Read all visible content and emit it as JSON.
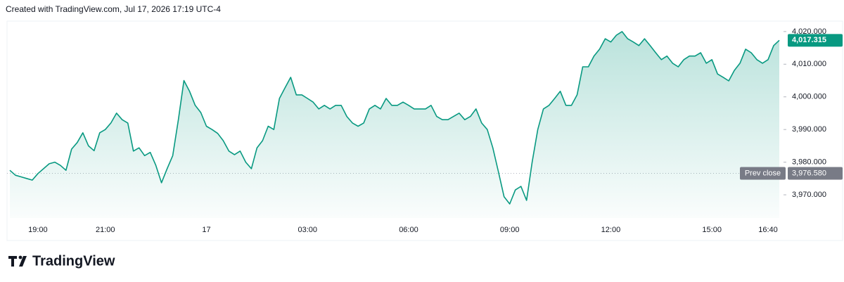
{
  "credit": "Created with TradingView.com, Jul 17, 2026 17:19 UTC-4",
  "brand": "TradingView",
  "chart_data": {
    "type": "area",
    "color": "#089981",
    "categories": [
      null,
      null,
      null,
      null,
      null,
      "19:00",
      null,
      null,
      null,
      null,
      null,
      null,
      null,
      null,
      null,
      null,
      null,
      "21:00",
      null,
      null,
      null,
      null,
      null,
      null,
      null,
      null,
      null,
      null,
      null,
      null,
      null,
      null,
      null,
      null,
      null,
      "17",
      null,
      null,
      null,
      null,
      null,
      null,
      null,
      null,
      null,
      null,
      null,
      null,
      null,
      null,
      null,
      null,
      null,
      "03:00",
      null,
      null,
      null,
      null,
      null,
      null,
      null,
      null,
      null,
      null,
      null,
      null,
      null,
      null,
      null,
      null,
      null,
      "06:00",
      null,
      null,
      null,
      null,
      null,
      null,
      null,
      null,
      null,
      null,
      null,
      null,
      null,
      null,
      null,
      null,
      null,
      "09:00",
      null,
      null,
      null,
      null,
      null,
      null,
      null,
      null,
      null,
      null,
      null,
      null,
      null,
      null,
      null,
      null,
      null,
      "12:00",
      null,
      null,
      null,
      null,
      null,
      null,
      null,
      null,
      null,
      null,
      null,
      null,
      null,
      null,
      null,
      null,
      null,
      "15:00",
      null,
      null,
      null,
      null,
      null,
      null,
      null,
      null,
      null,
      "16:40",
      null,
      null
    ],
    "values": [
      3977.5,
      3976,
      3975.5,
      3975,
      3974.5,
      3976.5,
      3978,
      3979.5,
      3980,
      3979,
      3977.5,
      3984,
      3986,
      3989,
      3985,
      3983.5,
      3989,
      3990,
      3992,
      3995,
      3993,
      3992,
      3983.4,
      3984.4,
      3982,
      3983,
      3979,
      3973.7,
      3978,
      3982,
      3993,
      4005,
      4001.7,
      3997.4,
      3995.2,
      3991,
      3990,
      3988.8,
      3986.6,
      3983.4,
      3982.3,
      3983.4,
      3980,
      3978,
      3984.4,
      3986.6,
      3991,
      3990,
      3999.5,
      4002.8,
      4006,
      4000.6,
      4000.6,
      3999.5,
      3998.4,
      3996.3,
      3997.4,
      3996.3,
      3997.4,
      3997.4,
      3994,
      3992,
      3991,
      3992,
      3996.3,
      3997.4,
      3996.3,
      3999.5,
      3997.4,
      3997.4,
      3998.4,
      3997.4,
      3996.3,
      3996.3,
      3996.3,
      3997.4,
      3994,
      3993,
      3993,
      3994,
      3995,
      3993,
      3994,
      3996.3,
      3992,
      3990,
      3984.4,
      3977,
      3969.4,
      3967.2,
      3971.5,
      3972.6,
      3968.3,
      3980,
      3990,
      3996.3,
      3997.4,
      3999.5,
      4001.7,
      3997.4,
      3997.4,
      4000.6,
      4009.2,
      4009.2,
      4012.5,
      4014.6,
      4017.8,
      4016.8,
      4018.9,
      4020,
      4017.8,
      4016.8,
      4015.7,
      4017.8,
      4015.7,
      4013.5,
      4011.4,
      4012.5,
      4010.3,
      4009.2,
      4011.4,
      4012.5,
      4012.5,
      4013.5,
      4010.3,
      4011.4,
      4007,
      4006,
      4004.9,
      4008.1,
      4010.3,
      4014.6,
      4013.5,
      4011.4,
      4010.3,
      4011.4,
      4015.7,
      4017.315
    ],
    "ylim": [
      3962.9,
      4023.2
    ],
    "yticks": [
      {
        "value": 3970,
        "label": "3,970.000"
      },
      {
        "value": 3980,
        "label": "3,980.000"
      },
      {
        "value": 3990,
        "label": "3,990.000"
      },
      {
        "value": 4000,
        "label": "4,000.000"
      },
      {
        "value": 4010,
        "label": "4,010.000"
      },
      {
        "value": 4020,
        "label": "4,020.000"
      }
    ],
    "grid": false,
    "last_price": {
      "value": 4017.315,
      "label": "4,017.315",
      "color": "#089981"
    },
    "prev_close": {
      "name": "Prev close",
      "value": 3976.58,
      "label": "3,976.580",
      "color": "#787b86"
    }
  }
}
